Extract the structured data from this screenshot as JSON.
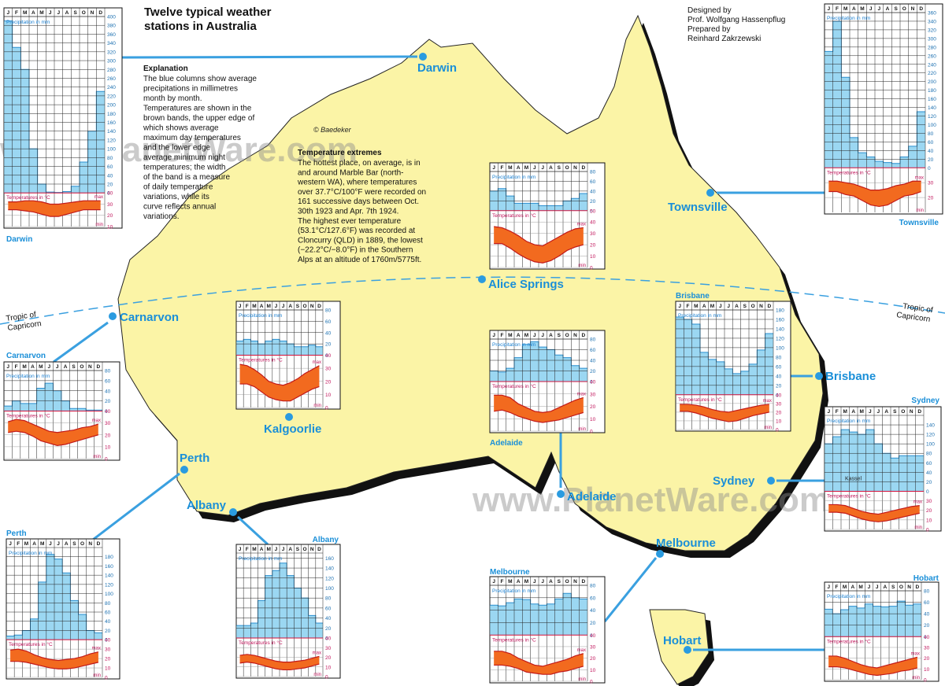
{
  "title": [
    "Twelve typical weather",
    "stations in Australia"
  ],
  "credits": [
    "Designed by",
    "Prof. Wolfgang Hassenpflug",
    "Prepared by",
    "Reinhard Zakrzewski"
  ],
  "copyright": "© Baedeker",
  "watermark": "www.PlanetWare.com",
  "tropic": [
    "Tropic of",
    "Capricorn"
  ],
  "explanation": {
    "heading": "Explanation",
    "lines": [
      "The blue columns show average",
      "precipitations in millimetres",
      "month by month.",
      "Temperatures are shown in the",
      "brown bands, the upper edge of",
      "which shows average",
      "maximum day temperatures",
      "and the lower edge",
      "average minimum night",
      "temperatures; the width",
      "of the band is a measure",
      "of daily temperature",
      "variations, while its",
      "curve reflects annual",
      "variations."
    ]
  },
  "temperature_extremes": {
    "heading": "Temperature extremes",
    "lines": [
      "The hottest place, on average, is in",
      "and around Marble Bar (north-",
      "western WA), where temperatures",
      "over 37.7°C/100°F were recorded on",
      "161 successive days between Oct.",
      "30th 1923 and Apr. 7th 1924.",
      "The highest ever temperature",
      "(53.1°C/127.6°F) was recorded at",
      "Cloncurry (QLD) in 1889, the lowest",
      "(−22.2°C/−8.0°F) in the Southern",
      "Alps at an altitude of 1760m/5775ft."
    ]
  },
  "chart_labels": {
    "months": [
      "J",
      "F",
      "M",
      "A",
      "M",
      "J",
      "J",
      "A",
      "S",
      "O",
      "N",
      "D"
    ],
    "precipitation": "Precipitation in mm",
    "temperature": "Temperatures in °C",
    "max": "max",
    "min": "min"
  },
  "stations": [
    {
      "name": "Darwin",
      "precipitation": [
        390,
        330,
        280,
        100,
        20,
        2,
        1,
        3,
        15,
        70,
        140,
        230
      ],
      "ylim": [
        0,
        400
      ],
      "yticks": [
        0,
        20,
        40,
        60,
        80,
        100,
        120,
        140,
        160,
        180,
        200,
        220,
        240,
        260,
        280,
        300,
        320,
        340,
        360,
        380,
        400
      ],
      "max": [
        32,
        32,
        33,
        33,
        32,
        30,
        30,
        31,
        32,
        33,
        33,
        33
      ],
      "min": [
        25,
        25,
        24,
        23,
        21,
        19,
        19,
        21,
        23,
        25,
        25,
        25
      ],
      "tlim": [
        10,
        40
      ],
      "tticks": [
        10,
        20,
        30,
        40
      ]
    },
    {
      "name": "Townsville",
      "precipitation": [
        270,
        340,
        210,
        70,
        35,
        25,
        15,
        12,
        10,
        25,
        50,
        130
      ],
      "ylim": [
        0,
        360
      ],
      "yticks": [
        0,
        20,
        40,
        60,
        80,
        100,
        120,
        140,
        160,
        180,
        200,
        220,
        240,
        260,
        280,
        300,
        320,
        340,
        360
      ],
      "max": [
        31,
        31,
        30,
        29,
        27,
        25,
        25,
        26,
        28,
        29,
        31,
        31
      ],
      "min": [
        24,
        24,
        22,
        21,
        18,
        15,
        14,
        15,
        18,
        21,
        22,
        24
      ],
      "tlim": [
        10,
        40
      ],
      "tticks": [
        20,
        30
      ]
    },
    {
      "name": "Alice Springs",
      "precipitation": [
        40,
        45,
        30,
        15,
        15,
        15,
        10,
        10,
        10,
        20,
        25,
        35
      ],
      "ylim": [
        0,
        80
      ],
      "yticks": [
        0,
        20,
        40,
        60,
        80
      ],
      "max": [
        36,
        35,
        32,
        28,
        23,
        20,
        19,
        23,
        27,
        31,
        34,
        35
      ],
      "min": [
        21,
        21,
        17,
        12,
        8,
        5,
        4,
        6,
        10,
        15,
        18,
        20
      ],
      "tlim": [
        0,
        50
      ],
      "tticks": [
        0,
        10,
        20,
        30,
        40,
        50
      ]
    },
    {
      "name": "Carnarvon",
      "precipitation": [
        10,
        20,
        15,
        15,
        45,
        55,
        40,
        20,
        5,
        5,
        2,
        2
      ],
      "ylim": [
        0,
        80
      ],
      "yticks": [
        0,
        20,
        40,
        60,
        80
      ],
      "max": [
        31,
        33,
        32,
        29,
        26,
        23,
        22,
        23,
        24,
        26,
        27,
        29
      ],
      "min": [
        22,
        23,
        22,
        19,
        15,
        13,
        11,
        12,
        14,
        16,
        18,
        20
      ],
      "tlim": [
        0,
        40
      ],
      "tticks": [
        0,
        10,
        20,
        30,
        40
      ]
    },
    {
      "name": "Kalgoorlie",
      "precipitation": [
        25,
        28,
        25,
        20,
        25,
        28,
        25,
        20,
        15,
        15,
        18,
        15
      ],
      "ylim": [
        0,
        80
      ],
      "yticks": [
        0,
        20,
        40,
        60,
        80
      ],
      "max": [
        33,
        32,
        29,
        25,
        20,
        18,
        17,
        19,
        22,
        26,
        29,
        32
      ],
      "min": [
        18,
        18,
        16,
        12,
        8,
        6,
        5,
        5,
        8,
        11,
        14,
        16
      ],
      "tlim": [
        0,
        40
      ],
      "tticks": [
        0,
        10,
        20,
        30,
        40
      ]
    },
    {
      "name": "Adelaide",
      "precipitation": [
        20,
        18,
        25,
        45,
        70,
        75,
        65,
        60,
        50,
        45,
        30,
        25
      ],
      "ylim": [
        0,
        80
      ],
      "yticks": [
        0,
        20,
        40,
        60,
        80
      ],
      "max": [
        29,
        29,
        27,
        22,
        19,
        16,
        15,
        16,
        19,
        22,
        25,
        27
      ],
      "min": [
        16,
        17,
        15,
        12,
        10,
        8,
        7,
        8,
        9,
        11,
        13,
        15
      ],
      "tlim": [
        0,
        40
      ],
      "tticks": [
        0,
        10,
        20,
        30,
        40
      ]
    },
    {
      "name": "Brisbane",
      "precipitation": [
        165,
        160,
        150,
        90,
        75,
        70,
        55,
        45,
        50,
        65,
        95,
        130
      ],
      "ylim": [
        0,
        180
      ],
      "yticks": [
        0,
        20,
        40,
        60,
        80,
        100,
        120,
        140,
        160,
        180
      ],
      "max": [
        29,
        29,
        28,
        26,
        23,
        21,
        20,
        22,
        24,
        26,
        28,
        29
      ],
      "min": [
        21,
        21,
        19,
        16,
        13,
        11,
        9,
        10,
        13,
        16,
        18,
        20
      ],
      "tlim": [
        0,
        40
      ],
      "tticks": [
        0,
        10,
        20,
        30,
        40
      ]
    },
    {
      "name": "Sydney",
      "precipitation": [
        100,
        115,
        130,
        125,
        120,
        130,
        100,
        80,
        70,
        75,
        75,
        75
      ],
      "ylim": [
        0,
        160
      ],
      "yticks": [
        0,
        20,
        40,
        60,
        80,
        100,
        120,
        140
      ],
      "max": [
        26,
        26,
        25,
        22,
        19,
        17,
        16,
        18,
        20,
        22,
        24,
        25
      ],
      "min": [
        18,
        18,
        17,
        14,
        11,
        9,
        8,
        9,
        11,
        13,
        15,
        17
      ],
      "tlim": [
        0,
        40
      ],
      "tticks": [
        0,
        10,
        20,
        30
      ],
      "annotation": "Kassel"
    },
    {
      "name": "Perth",
      "precipitation": [
        8,
        10,
        20,
        45,
        125,
        185,
        175,
        145,
        85,
        55,
        20,
        15
      ],
      "ylim": [
        0,
        200
      ],
      "yticks": [
        0,
        20,
        40,
        60,
        80,
        100,
        120,
        140,
        160,
        180
      ],
      "max": [
        29,
        30,
        28,
        24,
        21,
        19,
        18,
        19,
        20,
        22,
        25,
        27
      ],
      "min": [
        17,
        17,
        16,
        14,
        12,
        10,
        9,
        9,
        10,
        12,
        14,
        16
      ],
      "tlim": [
        0,
        40
      ],
      "tticks": [
        0,
        10,
        20,
        30,
        40
      ]
    },
    {
      "name": "Albany",
      "precipitation": [
        25,
        25,
        30,
        75,
        125,
        135,
        150,
        125,
        100,
        80,
        45,
        30
      ],
      "ylim": [
        0,
        170
      ],
      "yticks": [
        0,
        20,
        40,
        60,
        80,
        100,
        120,
        140,
        160
      ],
      "max": [
        22,
        23,
        22,
        20,
        18,
        16,
        15,
        15,
        16,
        17,
        19,
        21
      ],
      "min": [
        14,
        15,
        14,
        12,
        10,
        8,
        7,
        7,
        8,
        9,
        11,
        13
      ],
      "tlim": [
        0,
        40
      ],
      "tticks": [
        0,
        10,
        20,
        30,
        40
      ]
    },
    {
      "name": "Melbourne",
      "precipitation": [
        48,
        47,
        52,
        58,
        57,
        50,
        48,
        50,
        58,
        67,
        60,
        58
      ],
      "ylim": [
        0,
        80
      ],
      "yticks": [
        0,
        20,
        40,
        60,
        80
      ],
      "max": [
        26,
        26,
        24,
        20,
        17,
        14,
        13,
        15,
        17,
        19,
        22,
        24
      ],
      "min": [
        14,
        14,
        13,
        11,
        8,
        7,
        6,
        6,
        8,
        9,
        11,
        13
      ],
      "tlim": [
        0,
        40
      ],
      "tticks": [
        0,
        10,
        20,
        30,
        40
      ]
    },
    {
      "name": "Hobart",
      "precipitation": [
        48,
        40,
        47,
        53,
        50,
        57,
        53,
        52,
        53,
        62,
        55,
        57
      ],
      "ylim": [
        0,
        80
      ],
      "yticks": [
        0,
        20,
        40,
        60,
        80
      ],
      "max": [
        22,
        22,
        20,
        17,
        14,
        12,
        11,
        13,
        15,
        17,
        19,
        21
      ],
      "min": [
        12,
        12,
        11,
        9,
        7,
        5,
        4,
        5,
        6,
        8,
        9,
        11
      ],
      "tlim": [
        0,
        40
      ],
      "tticks": [
        0,
        10,
        20,
        30,
        40
      ]
    }
  ]
}
